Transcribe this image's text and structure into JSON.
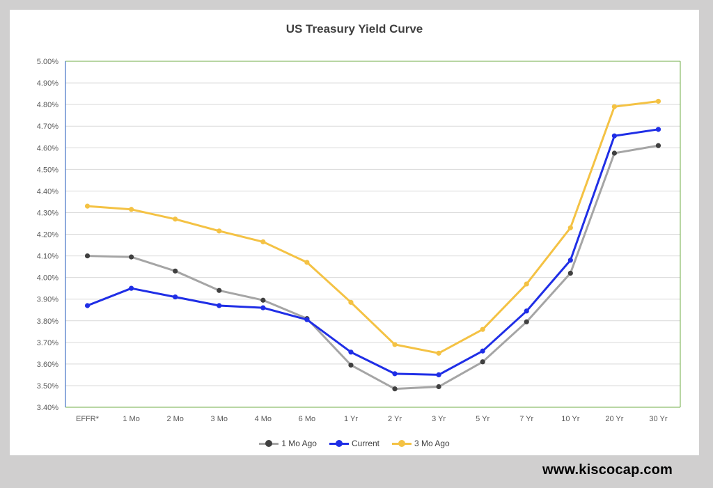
{
  "chart_data": {
    "type": "line",
    "title": "US Treasury Yield Curve",
    "categories": [
      "EFFR*",
      "1 Mo",
      "2 Mo",
      "3 Mo",
      "4 Mo",
      "6 Mo",
      "1 Yr",
      "2 Yr",
      "3 Yr",
      "5 Yr",
      "7 Yr",
      "10 Yr",
      "20 Yr",
      "30 Yr"
    ],
    "ylim": [
      3.4,
      5.0
    ],
    "yticks": [
      "3.40%",
      "3.50%",
      "3.60%",
      "3.70%",
      "3.80%",
      "3.90%",
      "4.00%",
      "4.10%",
      "4.20%",
      "4.30%",
      "4.40%",
      "4.50%",
      "4.60%",
      "4.70%",
      "4.80%",
      "4.90%",
      "5.00%"
    ],
    "grid": true,
    "legend_position": "bottom",
    "series": [
      {
        "name": "1 Mo Ago",
        "color": "#a5a5a5",
        "marker_color": "#404040",
        "values": [
          4.1,
          4.095,
          4.03,
          3.94,
          3.895,
          3.81,
          3.595,
          3.485,
          3.495,
          3.61,
          3.795,
          4.02,
          4.575,
          4.61
        ]
      },
      {
        "name": "Current",
        "color": "#1f2ee6",
        "marker_color": "#1f2ee6",
        "values": [
          3.87,
          3.95,
          3.91,
          3.87,
          3.86,
          3.805,
          3.655,
          3.555,
          3.55,
          3.66,
          3.845,
          4.08,
          4.655,
          4.685
        ]
      },
      {
        "name": "3 Mo Ago",
        "color": "#f4c244",
        "marker_color": "#f4c244",
        "values": [
          4.33,
          4.315,
          4.27,
          4.215,
          4.165,
          4.07,
          3.885,
          3.69,
          3.65,
          3.76,
          3.97,
          4.23,
          4.79,
          4.815
        ]
      }
    ]
  },
  "watermark": "www.kiscocap.com"
}
